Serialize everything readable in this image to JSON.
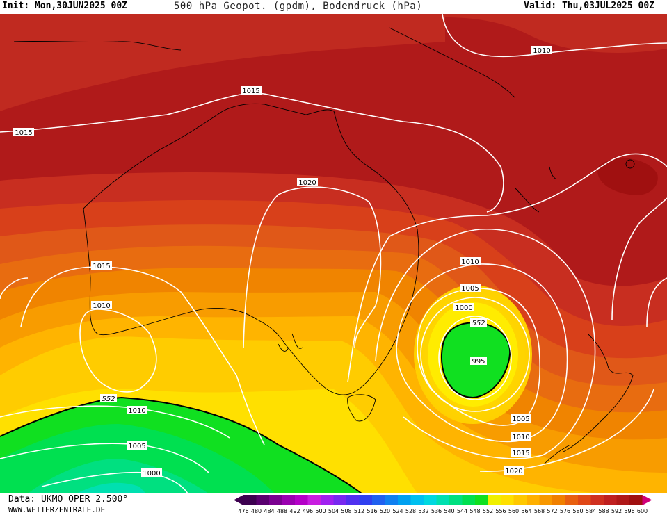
{
  "header": {
    "init": "Init: Mon,30JUN2025 00Z",
    "title": "500 hPa Geopot. (gpdm), Bodendruck (hPa)",
    "valid": "Valid: Thu,03JUL2025 00Z"
  },
  "footer": {
    "source": "Data: UKMO OPER 2.500°",
    "website": "WWW.WETTERZENTRALE.DE"
  },
  "legend": {
    "values": [
      "476",
      "480",
      "484",
      "488",
      "492",
      "496",
      "500",
      "504",
      "508",
      "512",
      "516",
      "520",
      "524",
      "528",
      "532",
      "536",
      "540",
      "544",
      "548",
      "552",
      "556",
      "560",
      "564",
      "568",
      "572",
      "576",
      "580",
      "584",
      "588",
      "592",
      "596",
      "600"
    ],
    "colors": [
      "#3d0050",
      "#5a0070",
      "#7a0090",
      "#9a00b0",
      "#b400c8",
      "#c81ee0",
      "#a020f0",
      "#7828f0",
      "#5030f0",
      "#3040f0",
      "#2060f0",
      "#1080f0",
      "#00a0f0",
      "#00c0f0",
      "#00d8e0",
      "#00e0b0",
      "#00e080",
      "#00e050",
      "#10e020",
      "#f0f000",
      "#ffe000",
      "#ffc800",
      "#ffb000",
      "#f89800",
      "#f08000",
      "#e86010",
      "#e04818",
      "#d03020",
      "#c02020",
      "#b01818",
      "#a01010",
      "#d0007a"
    ]
  },
  "isobar_labels": [
    {
      "text": "1010"
    },
    {
      "text": "1015"
    },
    {
      "text": "1015"
    },
    {
      "text": "1020"
    },
    {
      "text": "1015"
    },
    {
      "text": "1010"
    },
    {
      "text": "1010"
    },
    {
      "text": "1005"
    },
    {
      "text": "1000"
    },
    {
      "text": "552"
    },
    {
      "text": "995"
    },
    {
      "text": "1005"
    },
    {
      "text": "1010"
    },
    {
      "text": "1015"
    },
    {
      "text": "1020"
    },
    {
      "text": "552"
    },
    {
      "text": "1010"
    },
    {
      "text": "1005"
    },
    {
      "text": "1000"
    }
  ]
}
